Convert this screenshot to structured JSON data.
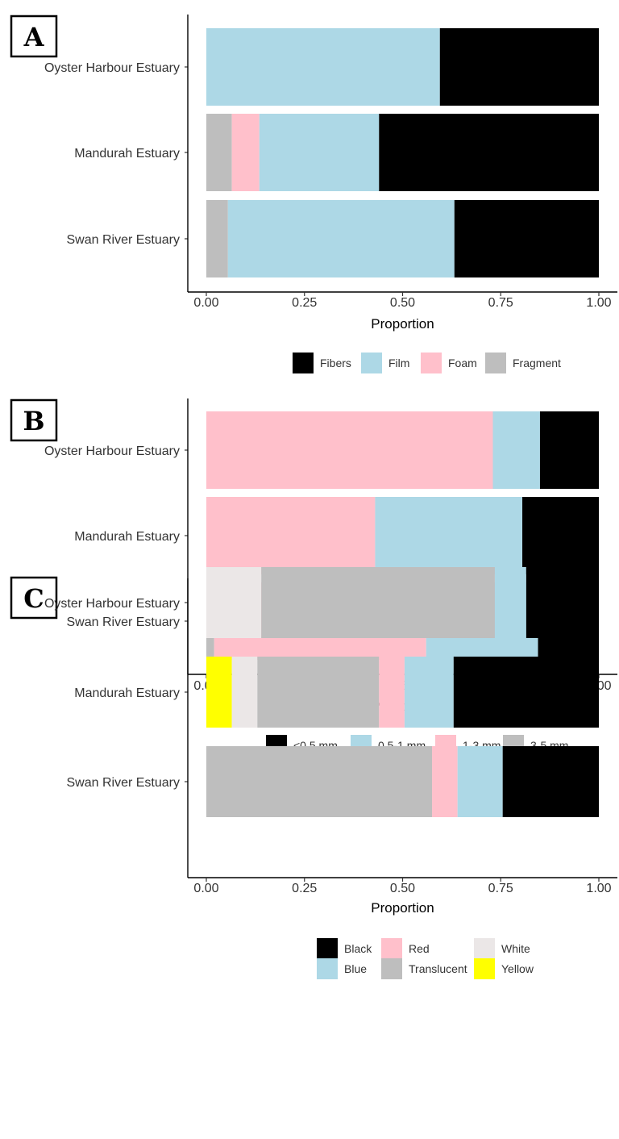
{
  "figure": {
    "panels": [
      {
        "letter": "A",
        "axis_label": "Proportion",
        "legend_title": ""
      },
      {
        "letter": "B",
        "axis_label": "Proportion",
        "legend_title": ""
      },
      {
        "letter": "C",
        "axis_label": "Proportion",
        "legend_title": ""
      }
    ]
  },
  "chart_data": [
    {
      "type": "bar",
      "orientation": "horizontal",
      "stacked": true,
      "panel": "A",
      "categories": [
        "Oyster Harbour Estuary",
        "Mandurah Estuary",
        "Swan River Estuary"
      ],
      "series": [
        {
          "name": "Fragment",
          "color": "#bebebe",
          "values": [
            0.0,
            0.065,
            0.055
          ]
        },
        {
          "name": "Foam",
          "color": "#ffc0cb",
          "values": [
            0.0,
            0.07,
            0.0
          ]
        },
        {
          "name": "Film",
          "color": "#add8e6",
          "values": [
            0.595,
            0.305,
            0.577
          ]
        },
        {
          "name": "Fibers",
          "color": "#000000",
          "values": [
            0.405,
            0.56,
            0.368
          ]
        }
      ],
      "xlabel": "Proportion",
      "xlim": [
        0,
        1
      ],
      "xticks": [
        "0.00",
        "0.25",
        "0.50",
        "0.75",
        "1.00"
      ],
      "legend": {
        "position": "bottom",
        "order": [
          "Fibers",
          "Film",
          "Foam",
          "Fragment"
        ]
      },
      "grid": false
    },
    {
      "type": "bar",
      "orientation": "horizontal",
      "stacked": true,
      "panel": "B",
      "categories": [
        "Oyster Harbour Estuary",
        "Mandurah Estuary",
        "Swan River Estuary"
      ],
      "series": [
        {
          "name": "3-5 mm",
          "color": "#bebebe",
          "values": [
            0.0,
            0.0,
            0.02
          ]
        },
        {
          "name": "1-3 mm",
          "color": "#ffc0cb",
          "values": [
            0.73,
            0.43,
            0.54
          ]
        },
        {
          "name": "0.5-1 mm",
          "color": "#add8e6",
          "values": [
            0.12,
            0.375,
            0.285
          ]
        },
        {
          "name": "<0.5 mm",
          "color": "#000000",
          "values": [
            0.15,
            0.195,
            0.155
          ]
        }
      ],
      "xlabel": "Proportion",
      "xlim": [
        0,
        1
      ],
      "xticks": [
        "0.00",
        "0.25",
        "0.50",
        "0.75",
        "1.00"
      ],
      "legend": {
        "position": "bottom",
        "order": [
          "<0.5 mm",
          "0.5-1 mm",
          "1-3 mm",
          "3-5 mm"
        ]
      },
      "grid": false
    },
    {
      "type": "bar",
      "orientation": "horizontal",
      "stacked": true,
      "panel": "C",
      "categories": [
        "Oyster Harbour Estuary",
        "Mandurah Estuary",
        "Swan River Estuary"
      ],
      "series": [
        {
          "name": "Yellow",
          "color": "#ffff00",
          "values": [
            0.0,
            0.065,
            0.0
          ]
        },
        {
          "name": "White",
          "color": "#ebe7e7",
          "values": [
            0.14,
            0.065,
            0.0
          ]
        },
        {
          "name": "Translucent",
          "color": "#bebebe",
          "values": [
            0.595,
            0.31,
            0.575
          ]
        },
        {
          "name": "Red",
          "color": "#ffc0cb",
          "values": [
            0.0,
            0.065,
            0.065
          ]
        },
        {
          "name": "Blue",
          "color": "#add8e6",
          "values": [
            0.08,
            0.125,
            0.115
          ]
        },
        {
          "name": "Black",
          "color": "#000000",
          "values": [
            0.185,
            0.37,
            0.245
          ]
        }
      ],
      "xlabel": "Proportion",
      "xlim": [
        0,
        1
      ],
      "xticks": [
        "0.00",
        "0.25",
        "0.50",
        "0.75",
        "1.00"
      ],
      "legend": {
        "position": "bottom",
        "order": [
          "Black",
          "Blue",
          "Red",
          "Translucent",
          "White",
          "Yellow"
        ]
      },
      "grid": false
    }
  ]
}
